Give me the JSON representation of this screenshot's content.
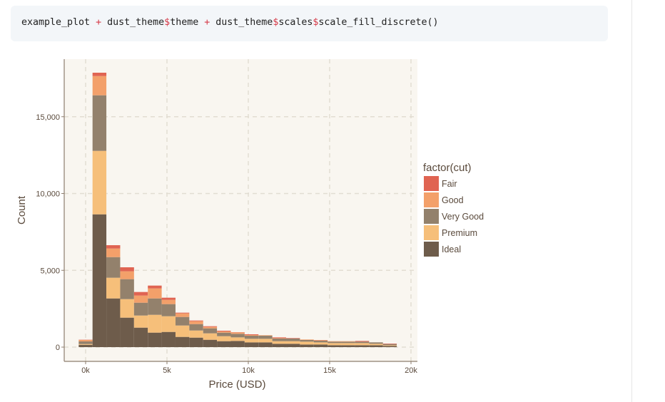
{
  "code": {
    "tokens": [
      "example_plot",
      " + ",
      "dust_theme",
      "$",
      "theme",
      " + ",
      "dust_theme",
      "$",
      "scales",
      "$",
      "scale_fill_discrete()"
    ]
  },
  "chart_data": {
    "type": "bar",
    "stacked": true,
    "xlabel": "Price (USD)",
    "ylabel": "Count",
    "xlim": [
      -1000,
      20000
    ],
    "ylim": [
      -800,
      18500
    ],
    "x_ticks": [
      0,
      5000,
      10000,
      15000,
      20000
    ],
    "x_tick_labels": [
      "0k",
      "5k",
      "10k",
      "15k",
      "20k"
    ],
    "y_ticks": [
      0,
      5000,
      10000,
      15000
    ],
    "y_tick_labels": [
      "0",
      "5,000",
      "10,000",
      "15,000"
    ],
    "grid": true,
    "bin_width": 850,
    "x": [
      0,
      850,
      1700,
      2550,
      3400,
      4250,
      5100,
      5950,
      6800,
      7650,
      8500,
      9350,
      10200,
      11050,
      11900,
      12750,
      13600,
      14450,
      15300,
      16150,
      17000,
      17850,
      18700
    ],
    "legend": {
      "title": "factor(cut)",
      "placement": "right"
    },
    "series": [
      {
        "name": "Fair",
        "color": "#e06452",
        "values": [
          16,
          217,
          218,
          262,
          232,
          185,
          140,
          47,
          46,
          46,
          47,
          15,
          46,
          0,
          46,
          30,
          0,
          15,
          0,
          0,
          46,
          0,
          30
        ]
      },
      {
        "name": "Good",
        "color": "#f3a06a",
        "values": [
          94,
          1253,
          558,
          511,
          465,
          651,
          277,
          232,
          186,
          92,
          77,
          93,
          46,
          31,
          31,
          0,
          31,
          31,
          31,
          31,
          0,
          0,
          0
        ]
      },
      {
        "name": "Very Good",
        "color": "#93816c",
        "values": [
          170,
          3619,
          1343,
          1299,
          835,
          1067,
          789,
          557,
          418,
          325,
          232,
          232,
          201,
          201,
          170,
          170,
          108,
          108,
          93,
          93,
          93,
          93,
          77
        ]
      },
      {
        "name": "Premium",
        "color": "#f6bf7a",
        "values": [
          50,
          4131,
          1347,
          1207,
          789,
          1160,
          1022,
          742,
          464,
          418,
          325,
          232,
          232,
          232,
          170,
          170,
          186,
          139,
          139,
          139,
          139,
          93,
          46
        ]
      },
      {
        "name": "Ideal",
        "color": "#6e5c4b",
        "values": [
          150,
          8645,
          3170,
          1918,
          1268,
          943,
          989,
          665,
          618,
          479,
          386,
          402,
          309,
          309,
          217,
          217,
          170,
          170,
          124,
          124,
          124,
          124,
          77
        ]
      }
    ],
    "colors": {
      "panel": "#f9f6f0",
      "grid": "#e2ddd2",
      "axis": "#8d7d6d",
      "text": "#5a4a3c"
    }
  }
}
